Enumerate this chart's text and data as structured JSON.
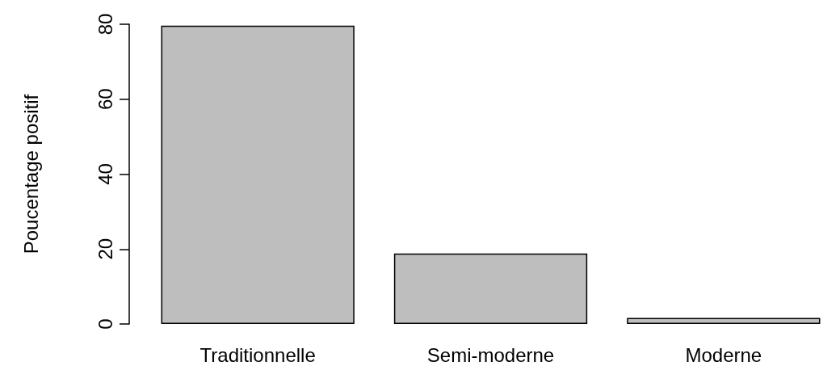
{
  "chart_data": {
    "type": "bar",
    "ylabel": "Poucentage positif",
    "categories": [
      "Traditionnelle",
      "Semi-moderne",
      "Moderne"
    ],
    "values": [
      79.6,
      18.8,
      1.6
    ],
    "color": "#bebebe",
    "ylim": [
      0,
      80
    ],
    "yticks": [
      0,
      20,
      40,
      60,
      80
    ]
  }
}
